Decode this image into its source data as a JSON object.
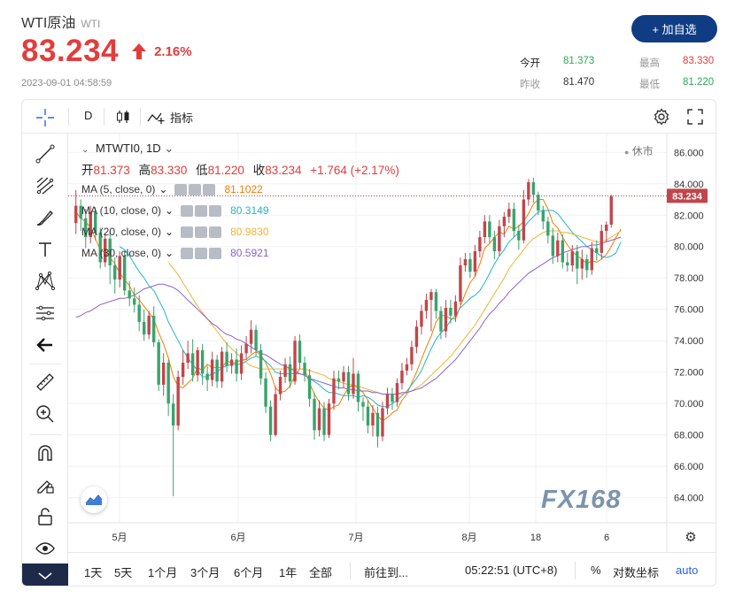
{
  "header": {
    "title": "WTI原油",
    "subtitle": "WTI",
    "price": "83.234",
    "change_pct": "2.16%",
    "timestamp": "2023-09-01 04:58:59",
    "add_button": "+ 加自选"
  },
  "stats": {
    "open_label": "今开",
    "open_value": "81.373",
    "high_label": "最高",
    "high_value": "83.330",
    "prev_label": "昨收",
    "prev_value": "81.470",
    "low_label": "最低",
    "low_value": "81.220"
  },
  "toolbar": {
    "interval": "D",
    "indicators_label": "指标"
  },
  "legend": {
    "symbol": "MTWTI0, 1D",
    "market_status": "休市",
    "ohlc": {
      "open_label": "开",
      "open": "81.373",
      "high_label": "高",
      "high": "83.330",
      "low_label": "低",
      "low": "81.220",
      "close_label": "收",
      "close": "83.234",
      "change": "+1.764 (+2.17%)"
    },
    "ma": [
      {
        "name": "MA (5, close, 0)",
        "value": "81.1022",
        "color": "#f57c00"
      },
      {
        "name": "MA (10, close, 0)",
        "value": "80.3149",
        "color": "#26b5c8"
      },
      {
        "name": "MA (20, close, 0)",
        "value": "80.9830",
        "color": "#f2b330"
      },
      {
        "name": "MA (30, close, 0)",
        "value": "80.5921",
        "color": "#8b62c9"
      }
    ]
  },
  "bottom": {
    "ranges": [
      "1天",
      "5天",
      "1个月",
      "3个月",
      "6个月",
      "1年",
      "全部"
    ],
    "goto": "前往到...",
    "clock": "05:22:51 (UTC+8)",
    "percent": "%",
    "log": "对数坐标",
    "auto": "auto"
  },
  "watermark": "FX168",
  "colors": {
    "up": "#c0464b",
    "down": "#3aa36b",
    "accent": "#e23d3d",
    "brand": "#103c84"
  },
  "chart_data": {
    "type": "candlestick",
    "ylim": [
      62.4,
      87.2
    ],
    "y_ticks": [
      "86.000",
      "84.000",
      "82.000",
      "80.000",
      "78.000",
      "76.000",
      "74.000",
      "72.000",
      "70.000",
      "68.000",
      "66.000",
      "64.000"
    ],
    "x_ticks": [
      "5月",
      "6月",
      "7月",
      "8月",
      "18",
      "6"
    ],
    "last_price_label": "83.234",
    "last_price": 83.234,
    "candles": [
      [
        81.5,
        82.6,
        83.6,
        80.8
      ],
      [
        82.6,
        81.8,
        83.0,
        81.0
      ],
      [
        81.8,
        80.6,
        82.4,
        79.9
      ],
      [
        80.6,
        82.2,
        82.6,
        80.2
      ],
      [
        82.2,
        80.9,
        82.5,
        80.4
      ],
      [
        80.9,
        79.0,
        81.2,
        78.6
      ],
      [
        79.0,
        80.5,
        80.8,
        78.7
      ],
      [
        80.5,
        78.8,
        81.0,
        77.6
      ],
      [
        78.8,
        77.9,
        79.3,
        77.0
      ],
      [
        77.9,
        79.4,
        79.7,
        77.4
      ],
      [
        79.4,
        77.2,
        79.7,
        76.9
      ],
      [
        77.2,
        76.7,
        77.8,
        76.2
      ],
      [
        76.7,
        76.3,
        77.4,
        75.8
      ],
      [
        76.3,
        75.2,
        76.9,
        74.6
      ],
      [
        75.2,
        74.4,
        76.0,
        74.0
      ],
      [
        74.4,
        75.6,
        75.9,
        74.1
      ],
      [
        75.6,
        73.9,
        76.2,
        73.6
      ],
      [
        73.9,
        71.2,
        74.1,
        70.8
      ],
      [
        71.2,
        72.6,
        73.2,
        70.5
      ],
      [
        72.6,
        70.0,
        72.8,
        69.2
      ],
      [
        70.0,
        68.6,
        70.6,
        64.1
      ],
      [
        68.6,
        71.7,
        72.1,
        68.3
      ],
      [
        71.7,
        72.6,
        73.4,
        71.2
      ],
      [
        72.6,
        73.2,
        74.0,
        72.2
      ],
      [
        73.2,
        71.8,
        74.1,
        71.4
      ],
      [
        71.8,
        73.4,
        73.6,
        71.4
      ],
      [
        73.4,
        71.9,
        73.8,
        71.2
      ],
      [
        71.9,
        71.5,
        72.4,
        70.8
      ],
      [
        71.5,
        72.8,
        73.3,
        71.1
      ],
      [
        72.8,
        71.4,
        73.1,
        71.0
      ],
      [
        71.4,
        73.3,
        73.6,
        71.0
      ],
      [
        73.3,
        72.4,
        73.9,
        72.0
      ],
      [
        72.4,
        72.8,
        73.2,
        71.9
      ],
      [
        72.8,
        71.9,
        73.5,
        71.4
      ],
      [
        71.9,
        73.2,
        73.7,
        71.5
      ],
      [
        73.2,
        73.8,
        74.3,
        72.8
      ],
      [
        73.8,
        74.7,
        75.3,
        73.2
      ],
      [
        74.7,
        73.4,
        75.0,
        73.0
      ],
      [
        73.4,
        71.6,
        73.8,
        71.2
      ],
      [
        71.6,
        69.8,
        72.0,
        69.4
      ],
      [
        69.8,
        68.0,
        70.2,
        67.6
      ],
      [
        68.0,
        70.6,
        71.1,
        67.9
      ],
      [
        70.6,
        71.7,
        72.1,
        70.2
      ],
      [
        71.7,
        72.5,
        72.9,
        71.3
      ],
      [
        72.5,
        71.4,
        73.0,
        71.0
      ],
      [
        71.4,
        74.0,
        74.3,
        71.2
      ],
      [
        74.0,
        72.6,
        74.4,
        72.2
      ],
      [
        72.6,
        71.8,
        73.0,
        71.4
      ],
      [
        71.8,
        70.3,
        72.2,
        69.8
      ],
      [
        70.3,
        68.3,
        70.7,
        67.7
      ],
      [
        68.3,
        69.7,
        70.2,
        67.9
      ],
      [
        69.7,
        68.0,
        70.1,
        67.6
      ],
      [
        68.0,
        70.0,
        70.3,
        67.8
      ],
      [
        70.0,
        71.6,
        72.1,
        69.6
      ],
      [
        71.6,
        71.4,
        72.1,
        70.9
      ],
      [
        71.4,
        72.0,
        72.4,
        71.0
      ],
      [
        72.0,
        70.6,
        72.4,
        70.2
      ],
      [
        70.6,
        71.9,
        72.9,
        70.3
      ],
      [
        71.9,
        70.1,
        72.1,
        69.5
      ],
      [
        70.1,
        69.8,
        70.4,
        68.9
      ],
      [
        69.8,
        68.6,
        70.2,
        68.1
      ],
      [
        68.6,
        69.4,
        69.9,
        67.9
      ],
      [
        69.4,
        67.9,
        69.8,
        67.2
      ],
      [
        67.9,
        69.7,
        70.1,
        67.6
      ],
      [
        69.7,
        70.6,
        71.0,
        69.3
      ],
      [
        70.6,
        70.1,
        71.0,
        69.6
      ],
      [
        70.1,
        71.3,
        71.6,
        69.8
      ],
      [
        71.3,
        72.1,
        72.6,
        70.9
      ],
      [
        72.1,
        72.5,
        72.9,
        71.8
      ],
      [
        72.5,
        73.6,
        74.0,
        72.1
      ],
      [
        73.6,
        74.9,
        75.3,
        73.2
      ],
      [
        74.9,
        75.9,
        76.3,
        74.4
      ],
      [
        75.9,
        76.6,
        77.0,
        75.4
      ],
      [
        76.6,
        77.1,
        77.3,
        74.6
      ],
      [
        77.1,
        75.9,
        77.3,
        75.4
      ],
      [
        75.9,
        74.6,
        76.2,
        74.1
      ],
      [
        74.6,
        76.1,
        76.6,
        74.2
      ],
      [
        76.1,
        75.6,
        76.6,
        75.1
      ],
      [
        75.6,
        76.5,
        76.9,
        75.2
      ],
      [
        76.5,
        78.8,
        79.3,
        76.3
      ],
      [
        78.8,
        79.2,
        79.6,
        78.4
      ],
      [
        79.2,
        78.4,
        79.6,
        78.0
      ],
      [
        78.4,
        79.7,
        80.1,
        78.1
      ],
      [
        79.7,
        80.6,
        81.0,
        79.3
      ],
      [
        80.6,
        81.6,
        82.0,
        80.2
      ],
      [
        81.6,
        80.6,
        82.0,
        80.2
      ],
      [
        80.6,
        79.7,
        81.0,
        79.2
      ],
      [
        79.7,
        81.3,
        81.7,
        79.4
      ],
      [
        81.3,
        81.9,
        82.2,
        80.6
      ],
      [
        81.9,
        82.4,
        82.8,
        81.5
      ],
      [
        82.4,
        81.0,
        82.8,
        80.6
      ],
      [
        81.0,
        80.4,
        81.4,
        79.8
      ],
      [
        80.4,
        83.0,
        83.6,
        80.2
      ],
      [
        83.0,
        84.1,
        84.3,
        82.6
      ],
      [
        84.1,
        83.3,
        84.4,
        82.8
      ],
      [
        83.3,
        82.3,
        83.5,
        82.0
      ],
      [
        82.3,
        81.6,
        82.6,
        81.1
      ],
      [
        81.6,
        80.7,
        81.9,
        80.2
      ],
      [
        80.7,
        79.4,
        81.2,
        78.9
      ],
      [
        79.4,
        80.4,
        80.9,
        79.0
      ],
      [
        80.4,
        79.0,
        80.8,
        78.6
      ],
      [
        79.0,
        78.8,
        79.6,
        78.4
      ],
      [
        78.8,
        79.7,
        80.1,
        78.4
      ],
      [
        79.7,
        78.6,
        80.1,
        77.6
      ],
      [
        78.6,
        79.2,
        79.8,
        77.9
      ],
      [
        79.2,
        78.5,
        79.5,
        78.0
      ],
      [
        78.5,
        79.9,
        80.3,
        78.2
      ],
      [
        79.9,
        79.6,
        80.4,
        79.1
      ],
      [
        79.6,
        81.0,
        81.4,
        79.2
      ],
      [
        81.0,
        81.4,
        81.6,
        80.3
      ],
      [
        81.4,
        83.2,
        83.3,
        81.2
      ]
    ],
    "series": [
      {
        "name": "MA (5, close, 0)",
        "color": "#f57c00",
        "values": [
          82.2,
          81.8,
          81.6,
          81.2,
          80.5,
          79.8,
          79.6,
          79.3,
          78.9,
          78.3,
          77.9,
          77.5,
          76.9,
          76.6,
          76.2,
          75.8,
          75.4,
          74.5,
          73.8,
          72.9,
          71.7,
          71.1,
          71.0,
          71.3,
          71.6,
          72.3,
          72.1,
          72.5,
          72.3,
          72.3,
          72.3,
          72.7,
          72.6,
          72.6,
          72.8,
          72.8,
          73.1,
          73.3,
          73.1,
          72.6,
          71.9,
          71.0,
          70.7,
          70.8,
          71.1,
          71.8,
          72.2,
          72.2,
          71.3,
          70.6,
          70.1,
          69.7,
          69.6,
          69.8,
          69.9,
          70.5,
          71.0,
          71.2,
          71.0,
          70.7,
          70.2,
          69.7,
          69.2,
          68.9,
          69.1,
          69.4,
          69.6,
          70.2,
          70.6,
          71.3,
          72.0,
          72.8,
          73.6,
          74.3,
          75.2,
          75.6,
          75.6,
          75.4,
          75.4,
          76.2,
          77.0,
          77.7,
          78.1,
          78.9,
          79.9,
          80.2,
          80.6,
          80.9,
          80.8,
          81.3,
          81.1,
          81.3,
          81.6,
          82.1,
          82.7,
          83.0,
          83.0,
          82.4,
          81.5,
          81.2,
          80.6,
          80.1,
          79.7,
          79.4,
          79.2,
          78.9,
          79.1,
          79.0,
          79.2,
          79.5,
          80.0,
          80.6,
          81.1
        ]
      },
      {
        "name": "MA (10, close, 0)",
        "color": "#26b5c8",
        "values": [
          null,
          null,
          null,
          null,
          null,
          null,
          null,
          null,
          null,
          80.0,
          79.8,
          79.4,
          78.9,
          78.4,
          78.0,
          77.5,
          77.2,
          76.6,
          76.0,
          75.2,
          74.6,
          74.0,
          73.4,
          72.9,
          72.5,
          72.1,
          71.7,
          71.7,
          71.9,
          72.0,
          72.3,
          72.4,
          72.5,
          72.5,
          72.5,
          72.7,
          72.9,
          73.0,
          72.9,
          72.7,
          72.4,
          72.0,
          71.9,
          71.9,
          71.9,
          71.9,
          71.9,
          71.8,
          71.6,
          71.4,
          71.2,
          70.9,
          70.7,
          70.7,
          70.6,
          70.5,
          70.5,
          70.5,
          70.4,
          70.5,
          70.4,
          70.2,
          69.9,
          69.8,
          69.8,
          70.0,
          70.2,
          70.5,
          70.8,
          71.2,
          71.6,
          72.1,
          72.8,
          73.5,
          74.1,
          74.5,
          74.8,
          75.3,
          75.6,
          76.1,
          76.4,
          76.7,
          76.9,
          77.2,
          77.7,
          78.3,
          78.9,
          79.4,
          79.8,
          80.3,
          80.6,
          80.9,
          81.2,
          81.6,
          81.9,
          82.2,
          82.3,
          82.3,
          82.3,
          82.1,
          81.7,
          81.3,
          80.9,
          80.6,
          80.3,
          80.0,
          79.8,
          79.6,
          79.4,
          79.3,
          79.4,
          79.6,
          80.3
        ]
      },
      {
        "name": "MA (20, close, 0)",
        "color": "#f2b330",
        "values": [
          null,
          null,
          null,
          null,
          null,
          null,
          null,
          null,
          null,
          null,
          null,
          null,
          null,
          null,
          null,
          null,
          null,
          null,
          null,
          79.0,
          78.6,
          78.2,
          77.7,
          77.2,
          76.7,
          76.2,
          75.8,
          75.4,
          75.0,
          74.6,
          74.2,
          73.8,
          73.5,
          73.2,
          72.9,
          72.6,
          72.4,
          72.3,
          72.2,
          72.2,
          72.2,
          72.2,
          72.2,
          72.2,
          72.2,
          72.2,
          72.2,
          72.2,
          72.1,
          72.0,
          71.9,
          71.8,
          71.6,
          71.5,
          71.4,
          71.3,
          71.2,
          71.2,
          71.1,
          71.0,
          70.9,
          70.8,
          70.7,
          70.6,
          70.6,
          70.6,
          70.6,
          70.6,
          70.7,
          70.8,
          71.0,
          71.2,
          71.5,
          71.8,
          72.1,
          72.4,
          72.7,
          73.0,
          73.4,
          73.8,
          74.2,
          74.6,
          75.0,
          75.5,
          76.0,
          76.5,
          77.0,
          77.5,
          78.0,
          78.6,
          79.0,
          79.4,
          79.8,
          80.2,
          80.5,
          80.7,
          80.9,
          81.0,
          81.0,
          81.0,
          80.9,
          80.9,
          80.8,
          80.7,
          80.6,
          80.5,
          80.4,
          80.3,
          80.3,
          80.4,
          80.6,
          80.8,
          81.0
        ]
      },
      {
        "name": "MA (30, close, 0)",
        "color": "#8b62c9",
        "values": [
          75.5,
          75.6,
          75.8,
          75.9,
          76.1,
          76.3,
          76.4,
          76.5,
          76.6,
          76.7,
          76.7,
          76.8,
          76.9,
          77.1,
          77.3,
          77.4,
          77.5,
          77.6,
          77.6,
          77.5,
          77.4,
          77.2,
          76.9,
          76.6,
          76.3,
          76.0,
          75.7,
          75.4,
          75.1,
          74.9,
          74.6,
          74.4,
          74.3,
          74.1,
          74.0,
          73.8,
          73.6,
          73.4,
          73.2,
          73.1,
          72.9,
          72.7,
          72.5,
          72.4,
          72.2,
          72.1,
          71.9,
          71.8,
          71.6,
          71.5,
          71.4,
          71.3,
          71.2,
          71.1,
          71.0,
          71.0,
          70.9,
          70.9,
          70.8,
          70.8,
          70.8,
          70.7,
          70.7,
          70.6,
          70.6,
          70.6,
          70.6,
          70.7,
          70.7,
          70.8,
          70.9,
          71.0,
          71.2,
          71.4,
          71.6,
          71.9,
          72.2,
          72.5,
          72.8,
          73.2,
          73.6,
          74.0,
          74.4,
          74.8,
          75.3,
          75.7,
          76.0,
          76.4,
          76.7,
          77.1,
          77.4,
          77.7,
          78.0,
          78.3,
          78.5,
          78.7,
          78.9,
          79.1,
          79.3,
          79.4,
          79.6,
          79.7,
          79.8,
          79.9,
          80.0,
          80.0,
          80.1,
          80.1,
          80.2,
          80.3,
          80.4,
          80.5,
          80.6
        ]
      }
    ]
  }
}
